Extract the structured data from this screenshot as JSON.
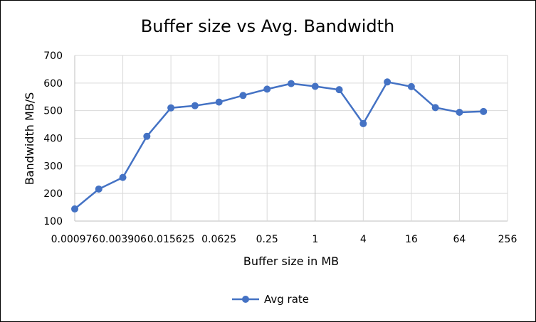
{
  "chart_data": {
    "type": "line",
    "title": "Buffer size vs Avg. Bandwidth",
    "xlabel": "Buffer size in MB",
    "ylabel": "Bandwidth MB/S",
    "x_scale": "log2",
    "x_ticks": [
      "0.0009765625",
      "0.00390625",
      "0.015625",
      "0.0625",
      "0.25",
      "1",
      "4",
      "16",
      "64",
      "256"
    ],
    "x_tick_labels": [
      "0.000976",
      "0.003906",
      "0.015625",
      "0.0625",
      "0.25",
      "1",
      "4",
      "16",
      "64",
      "256"
    ],
    "ylim": [
      100,
      700
    ],
    "y_ticks": [
      100,
      200,
      300,
      400,
      500,
      600,
      700
    ],
    "grid": true,
    "legend_position": "bottom",
    "series": [
      {
        "name": "Avg rate",
        "color": "#4472C4",
        "x": [
          0.0009765625,
          0.001953125,
          0.00390625,
          0.0078125,
          0.015625,
          0.03125,
          0.0625,
          0.125,
          0.25,
          0.5,
          1,
          2,
          4,
          8,
          16,
          32,
          64,
          128
        ],
        "y": [
          144,
          216,
          258,
          407,
          510,
          518,
          531,
          555,
          578,
          598,
          588,
          576,
          453,
          604,
          587,
          511,
          494,
          497
        ]
      }
    ]
  }
}
